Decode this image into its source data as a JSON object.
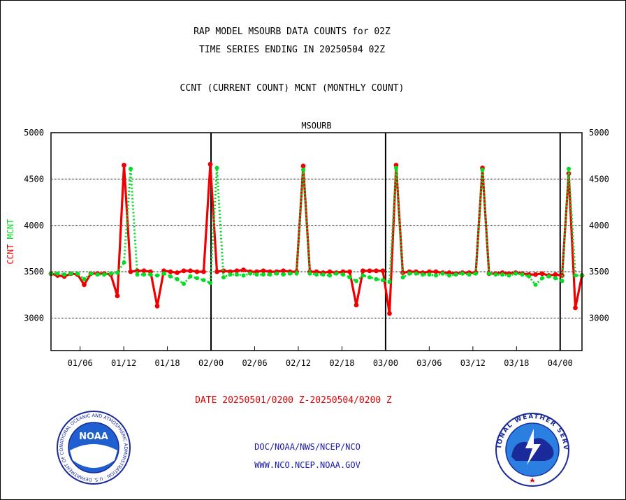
{
  "title_line1": "RAP MODEL MSOURB DATA COUNTS for 02Z",
  "title_line2": "TIME SERIES ENDING IN 20250504 02Z",
  "subtitle": "CCNT (CURRENT COUNT) MCNT (MONTHLY COUNT)",
  "footer": {
    "date_range": "DATE 20250501/0200 Z-20250504/0200 Z",
    "credit_line1": "DOC/NOAA/NWS/NCEP/NCO",
    "credit_line2": "WWW.NCO.NCEP.NOAA.GOV"
  },
  "logos": {
    "left": {
      "text": "NOAA",
      "ring_text": "NATIONAL OCEANIC AND ATMOSPHERIC ADMINISTRATION · U.S. DEPARTMENT OF COMMERCE"
    },
    "right": {
      "ring_text": "NATIONAL WEATHER SERVICE"
    }
  },
  "colors": {
    "ccnt": "#ee0000",
    "mcnt": "#00dd22",
    "panel_label": "#1a1aa8",
    "grid": "#000000"
  },
  "chart_data": {
    "type": "line",
    "panel_label": "MSOURB",
    "ylabel_parts": [
      "CCNT",
      "MCNT"
    ],
    "ylim": [
      2650,
      5000
    ],
    "yticks": [
      3000,
      3500,
      4000,
      4500,
      5000
    ],
    "ytick_labels": [
      "3000",
      "3500",
      "4000",
      "4500",
      "5000"
    ],
    "x_index_range": [
      0,
      73
    ],
    "xtick_index": [
      4,
      10,
      16,
      22,
      28,
      34,
      40,
      46,
      52,
      58,
      64,
      70
    ],
    "xtick_labels": [
      "01/06",
      "01/12",
      "01/18",
      "02/00",
      "02/06",
      "02/12",
      "02/18",
      "03/00",
      "03/06",
      "03/12",
      "03/18",
      "04/00"
    ],
    "major_x_lines_index": [
      22,
      46,
      70
    ],
    "grid": "horizontal",
    "series": [
      {
        "name": "CCNT",
        "values": [
          3480,
          3460,
          3450,
          3480,
          3470,
          3360,
          3480,
          3480,
          3480,
          3470,
          3240,
          4650,
          3500,
          3510,
          3510,
          3500,
          3130,
          3510,
          3500,
          3490,
          3510,
          3510,
          3500,
          3500,
          4660,
          3500,
          3510,
          3500,
          3510,
          3520,
          3500,
          3500,
          3510,
          3500,
          3500,
          3510,
          3500,
          3500,
          4640,
          3500,
          3500,
          3490,
          3500,
          3490,
          3500,
          3500,
          3140,
          3510,
          3510,
          3510,
          3510,
          3050,
          4650,
          3490,
          3500,
          3500,
          3490,
          3500,
          3500,
          3490,
          3490,
          3480,
          3490,
          3490,
          3490,
          4620,
          3480,
          3480,
          3490,
          3480,
          3490,
          3480,
          3470,
          3470,
          3480,
          3460,
          3470,
          3460,
          4560,
          3110,
          3460
        ]
      },
      {
        "name": "MCNT",
        "values": [
          3480,
          3480,
          3470,
          3480,
          3480,
          3420,
          3480,
          3470,
          3470,
          3480,
          3490,
          3600,
          4610,
          3470,
          3470,
          3470,
          3460,
          3480,
          3450,
          3420,
          3370,
          3450,
          3430,
          3410,
          3380,
          4620,
          3440,
          3470,
          3470,
          3460,
          3480,
          3470,
          3470,
          3470,
          3480,
          3470,
          3480,
          3480,
          4600,
          3480,
          3470,
          3470,
          3460,
          3480,
          3470,
          3440,
          3400,
          3460,
          3440,
          3420,
          3410,
          3390,
          4620,
          3440,
          3480,
          3480,
          3470,
          3470,
          3460,
          3480,
          3460,
          3470,
          3480,
          3470,
          3480,
          4600,
          3480,
          3470,
          3470,
          3460,
          3480,
          3470,
          3450,
          3360,
          3430,
          3450,
          3430,
          3400,
          4610,
          3460,
          3460
        ]
      }
    ]
  }
}
